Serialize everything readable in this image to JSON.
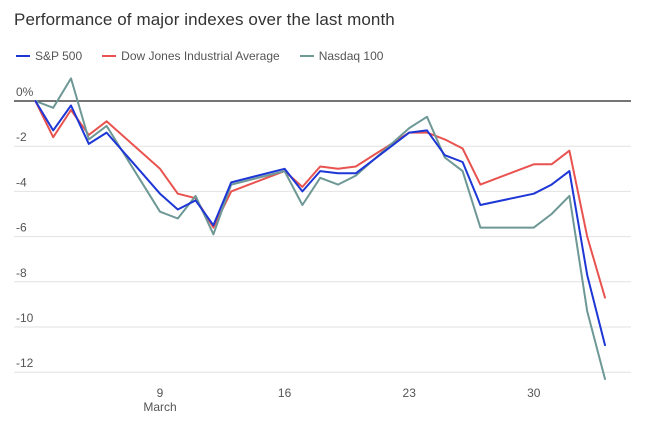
{
  "chart_data": {
    "type": "line",
    "title": "Performance of major indexes over the last month",
    "xlabel": "",
    "ylabel": "",
    "x": [
      2,
      3,
      4,
      5,
      6,
      7,
      8,
      9,
      10,
      11,
      12,
      13,
      14,
      15,
      16,
      17,
      18,
      19,
      20,
      21,
      22,
      23,
      24,
      25,
      26,
      27,
      28,
      29,
      30,
      31,
      32,
      33,
      34,
      35
    ],
    "x_ticks": [
      {
        "x": 9,
        "label": "9",
        "sublabel": "March"
      },
      {
        "x": 16,
        "label": "16",
        "sublabel": ""
      },
      {
        "x": 23,
        "label": "23",
        "sublabel": ""
      },
      {
        "x": 30,
        "label": "30",
        "sublabel": ""
      }
    ],
    "y_ticks": [
      {
        "value": 0,
        "label": "0%"
      },
      {
        "value": -2,
        "label": "-2"
      },
      {
        "value": -4,
        "label": "-4"
      },
      {
        "value": -6,
        "label": "-6"
      },
      {
        "value": -8,
        "label": "-8"
      },
      {
        "value": -10,
        "label": "-10"
      },
      {
        "value": -12,
        "label": "-12"
      }
    ],
    "xlim": [
      2,
      35
    ],
    "ylim": [
      -12.5,
      0.5
    ],
    "grid": true,
    "legend_position": "top-left",
    "series": [
      {
        "name": "S&P 500",
        "color": "#1d36d6",
        "points": [
          [
            2,
            0
          ],
          [
            3,
            -1.3
          ],
          [
            4,
            -0.2
          ],
          [
            5,
            -1.9
          ],
          [
            6,
            -1.4
          ],
          [
            9,
            -4.1
          ],
          [
            10,
            -4.8
          ],
          [
            11,
            -4.4
          ],
          [
            12,
            -5.5
          ],
          [
            13,
            -3.6
          ],
          [
            16,
            -3.0
          ],
          [
            17,
            -4.0
          ],
          [
            18,
            -3.1
          ],
          [
            19,
            -3.2
          ],
          [
            20,
            -3.2
          ],
          [
            23,
            -1.4
          ],
          [
            24,
            -1.3
          ],
          [
            25,
            -2.4
          ],
          [
            26,
            -2.7
          ],
          [
            27,
            -4.6
          ],
          [
            30,
            -4.1
          ],
          [
            31,
            -3.7
          ],
          [
            32,
            -3.1
          ],
          [
            33,
            -7.7
          ],
          [
            34,
            -10.8
          ]
        ]
      },
      {
        "name": "Dow Jones Industrial Average",
        "color": "#e8534f",
        "points": [
          [
            2,
            0
          ],
          [
            3,
            -1.6
          ],
          [
            4,
            -0.4
          ],
          [
            5,
            -1.5
          ],
          [
            6,
            -0.9
          ],
          [
            9,
            -3.0
          ],
          [
            10,
            -4.1
          ],
          [
            11,
            -4.3
          ],
          [
            12,
            -5.6
          ],
          [
            13,
            -4.0
          ],
          [
            16,
            -3.1
          ],
          [
            17,
            -3.8
          ],
          [
            18,
            -2.9
          ],
          [
            19,
            -3.0
          ],
          [
            20,
            -2.9
          ],
          [
            23,
            -1.4
          ],
          [
            24,
            -1.4
          ],
          [
            25,
            -1.7
          ],
          [
            26,
            -2.1
          ],
          [
            27,
            -3.7
          ],
          [
            30,
            -2.8
          ],
          [
            31,
            -2.8
          ],
          [
            32,
            -2.2
          ],
          [
            33,
            -6.0
          ],
          [
            34,
            -8.7
          ]
        ]
      },
      {
        "name": "Nasdaq 100",
        "color": "#6e9896",
        "points": [
          [
            2,
            0
          ],
          [
            3,
            -0.3
          ],
          [
            4,
            1.0
          ],
          [
            5,
            -1.7
          ],
          [
            6,
            -1.1
          ],
          [
            9,
            -4.9
          ],
          [
            10,
            -5.2
          ],
          [
            11,
            -4.2
          ],
          [
            12,
            -5.9
          ],
          [
            13,
            -3.7
          ],
          [
            16,
            -3.1
          ],
          [
            17,
            -4.6
          ],
          [
            18,
            -3.4
          ],
          [
            19,
            -3.7
          ],
          [
            20,
            -3.3
          ],
          [
            23,
            -1.2
          ],
          [
            24,
            -0.7
          ],
          [
            25,
            -2.5
          ],
          [
            26,
            -3.1
          ],
          [
            27,
            -5.6
          ],
          [
            30,
            -5.6
          ],
          [
            31,
            -5.0
          ],
          [
            32,
            -4.2
          ],
          [
            33,
            -9.3
          ],
          [
            34,
            -12.3
          ]
        ]
      }
    ]
  }
}
